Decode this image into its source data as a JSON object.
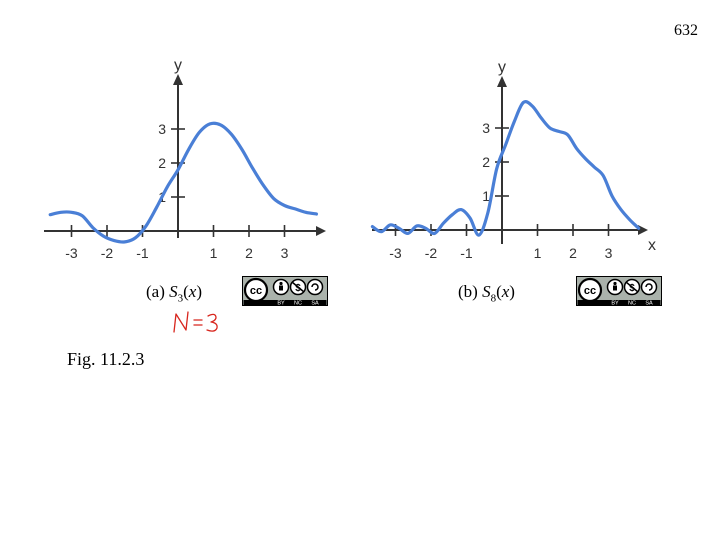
{
  "page_number": "632",
  "figure_label": "Fig. 11.2.3",
  "handwritten_note": "N=3",
  "license_badge": {
    "cc": "cc",
    "by": "BY",
    "nc": "NC",
    "sa": "SA"
  },
  "colors": {
    "curve": "#4a7fd6",
    "axis": "#333333",
    "ink": "#d8261e"
  },
  "chart_data": [
    {
      "type": "line",
      "caption_prefix": "(a)",
      "caption_func": "S",
      "caption_sub": "3",
      "caption_var": "x",
      "xlabel": "",
      "ylabel": "y",
      "x_ticks": [
        -3,
        -2,
        -1,
        1,
        2,
        3
      ],
      "x_tick_labels": [
        "-3",
        "-2",
        "-1",
        "1",
        "2",
        "3"
      ],
      "y_ticks": [
        1,
        2,
        3
      ],
      "y_tick_labels": [
        "1",
        "2",
        "3"
      ],
      "xlim": [
        -3.8,
        4.2
      ],
      "ylim": [
        -0.3,
        4.4
      ],
      "grid": false,
      "series": [
        {
          "x": [
            -3.6,
            -3.3,
            -3.0,
            -2.7,
            -2.4,
            -2.1,
            -1.8,
            -1.5,
            -1.2,
            -0.9,
            -0.6,
            -0.3,
            0.0,
            0.3,
            0.6,
            0.9,
            1.2,
            1.5,
            1.8,
            2.1,
            2.4,
            2.7,
            3.0,
            3.3,
            3.6,
            3.9
          ],
          "y": [
            0.48,
            0.55,
            0.55,
            0.45,
            0.1,
            -0.15,
            -0.28,
            -0.32,
            -0.2,
            0.15,
            0.7,
            1.3,
            1.8,
            2.4,
            2.9,
            3.15,
            3.12,
            2.85,
            2.4,
            1.85,
            1.35,
            0.95,
            0.75,
            0.65,
            0.55,
            0.5
          ]
        }
      ]
    },
    {
      "type": "line",
      "caption_prefix": "(b)",
      "caption_func": "S",
      "caption_sub": "8",
      "caption_var": "x",
      "xlabel": "x",
      "ylabel": "y",
      "x_ticks": [
        -3,
        -2,
        -1,
        1,
        2,
        3
      ],
      "x_tick_labels": [
        "-3",
        "-2",
        "-1",
        "1",
        "2",
        "3"
      ],
      "y_ticks": [
        1,
        2,
        3
      ],
      "y_tick_labels": [
        "1",
        "2",
        "3"
      ],
      "xlim": [
        -3.8,
        4.2
      ],
      "ylim": [
        -0.3,
        4.4
      ],
      "grid": false,
      "series": [
        {
          "x": [
            -3.65,
            -3.4,
            -3.15,
            -2.9,
            -2.65,
            -2.4,
            -2.15,
            -1.9,
            -1.65,
            -1.4,
            -1.15,
            -0.9,
            -0.65,
            -0.4,
            -0.15,
            0.1,
            0.35,
            0.6,
            0.85,
            1.1,
            1.35,
            1.6,
            1.85,
            2.1,
            2.35,
            2.6,
            2.85,
            3.1,
            3.35,
            3.6,
            3.85
          ],
          "y": [
            0.1,
            -0.05,
            0.15,
            0.05,
            -0.1,
            0.12,
            0.05,
            -0.1,
            0.2,
            0.45,
            0.6,
            0.35,
            -0.15,
            0.5,
            1.8,
            2.5,
            3.2,
            3.75,
            3.65,
            3.3,
            3.0,
            2.9,
            2.8,
            2.4,
            2.1,
            1.85,
            1.6,
            1.0,
            0.6,
            0.3,
            0.05
          ]
        }
      ]
    }
  ]
}
